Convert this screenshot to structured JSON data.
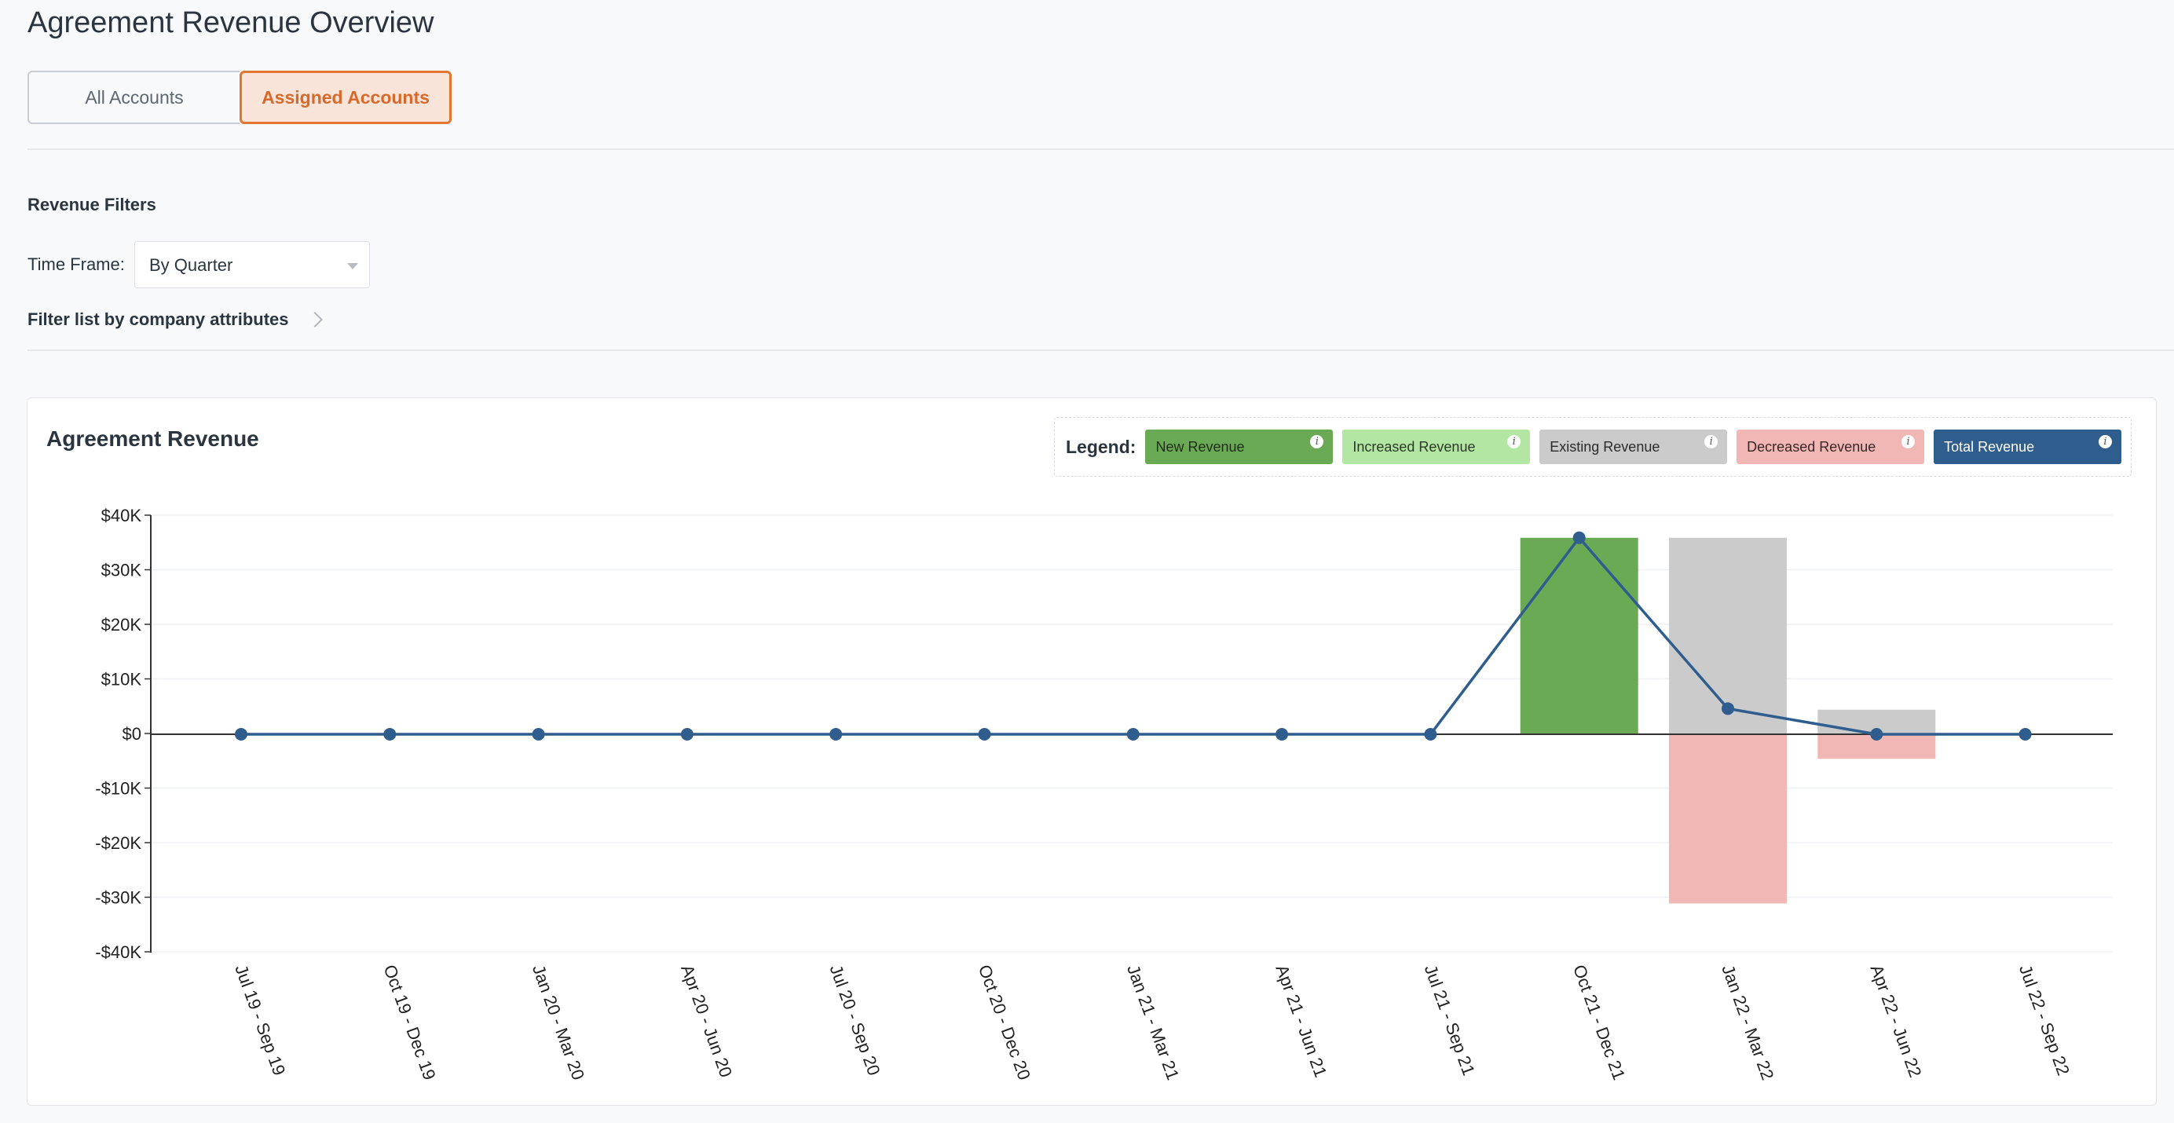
{
  "page": {
    "title": "Agreement Revenue Overview"
  },
  "account_toggle": {
    "all_label": "All Accounts",
    "assigned_label": "Assigned Accounts",
    "selected": "Assigned Accounts"
  },
  "filters": {
    "title": "Revenue Filters",
    "time_frame_label": "Time Frame:",
    "time_frame_value": "By Quarter",
    "attributes_link": "Filter list by company attributes"
  },
  "card": {
    "title": "Agreement Revenue"
  },
  "legend": {
    "label": "Legend:",
    "items": [
      {
        "label": "New Revenue",
        "color": "#6aaa55",
        "text_color": "#1e2d15"
      },
      {
        "label": "Increased Revenue",
        "color": "#b3e6a3",
        "text_color": "#2b3a26"
      },
      {
        "label": "Existing Revenue",
        "color": "#cbcbcb",
        "text_color": "#2b2b2b"
      },
      {
        "label": "Decreased Revenue",
        "color": "#f1b7b5",
        "text_color": "#3a2626"
      },
      {
        "label": "Total Revenue",
        "color": "#2e5d8e",
        "text_color": "#ffffff"
      }
    ]
  },
  "chart_data": {
    "type": "bar",
    "categories": [
      "Jul 19 - Sep 19",
      "Oct 19 - Dec 19",
      "Jan 20 - Mar 20",
      "Apr 20 - Jun 20",
      "Jul 20 - Sep 20",
      "Oct 20 - Dec 20",
      "Jan 21 - Mar 21",
      "Apr 21 - Jun 21",
      "Jul 21 - Sep 21",
      "Oct 21 - Dec 21",
      "Jan 22 - Mar 22",
      "Apr 22 - Jun 22",
      "Jul 22 - Sep 22"
    ],
    "y_ticks": [
      "$40K",
      "$30K",
      "$20K",
      "$10K",
      "$0",
      "-$10K",
      "-$20K",
      "-$30K",
      "-$40K"
    ],
    "ylim": [
      -40000,
      40000
    ],
    "series": [
      {
        "name": "New Revenue",
        "kind": "bar",
        "color": "#6aaa55",
        "values": [
          0,
          0,
          0,
          0,
          0,
          0,
          0,
          0,
          0,
          36000,
          0,
          0,
          0
        ]
      },
      {
        "name": "Increased Revenue",
        "kind": "bar",
        "color": "#b3e6a3",
        "values": [
          0,
          0,
          0,
          0,
          0,
          0,
          0,
          0,
          0,
          0,
          0,
          0,
          0
        ]
      },
      {
        "name": "Existing Revenue",
        "kind": "bar",
        "color": "#cbcbcb",
        "values": [
          0,
          0,
          0,
          0,
          0,
          0,
          0,
          0,
          0,
          0,
          36000,
          4500,
          0
        ]
      },
      {
        "name": "Decreased Revenue",
        "kind": "bar",
        "color": "#f1b7b5",
        "values": [
          0,
          0,
          0,
          0,
          0,
          0,
          0,
          0,
          0,
          0,
          -31000,
          -4500,
          0
        ]
      },
      {
        "name": "Total Revenue",
        "kind": "line",
        "color": "#2e5d8e",
        "values": [
          0,
          0,
          0,
          0,
          0,
          0,
          0,
          0,
          0,
          36000,
          4700,
          0,
          0
        ]
      }
    ],
    "grid": true,
    "legend_position": "top-right"
  }
}
